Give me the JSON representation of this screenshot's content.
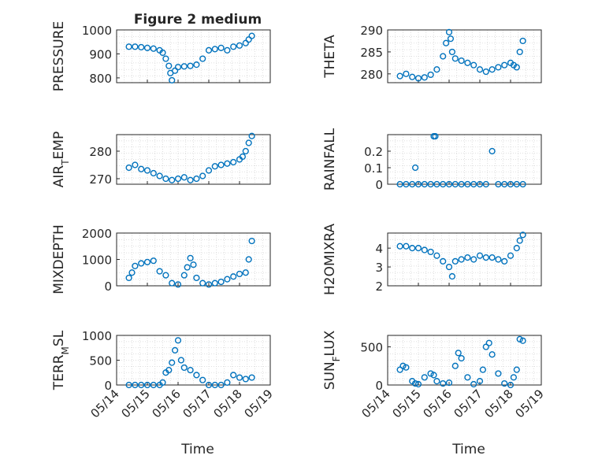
{
  "title": "Figure 2 medium",
  "marker_color": "#0072BD",
  "x_axis": {
    "label": "Time",
    "ticks": [
      {
        "value": 0,
        "label": "05/14"
      },
      {
        "value": 1,
        "label": "05/15"
      },
      {
        "value": 2,
        "label": "05/16"
      },
      {
        "value": 3,
        "label": "05/17"
      },
      {
        "value": 4,
        "label": "05/18"
      },
      {
        "value": 5,
        "label": "05/19"
      }
    ],
    "xlim": [
      0,
      5
    ]
  },
  "chart_data": [
    {
      "type": "scatter",
      "ylabel": "PRESSURE",
      "ylim": [
        780,
        1000
      ],
      "yticks": [
        800,
        900,
        1000
      ],
      "grid": true,
      "x": [
        0.4,
        0.6,
        0.8,
        1.0,
        1.2,
        1.4,
        1.5,
        1.6,
        1.7,
        1.75,
        1.8,
        1.9,
        2.0,
        2.2,
        2.4,
        2.6,
        2.8,
        3.0,
        3.2,
        3.4,
        3.6,
        3.8,
        4.0,
        4.2,
        4.3,
        4.4
      ],
      "y": [
        930,
        930,
        928,
        925,
        922,
        915,
        905,
        880,
        850,
        820,
        790,
        830,
        845,
        848,
        850,
        855,
        880,
        915,
        920,
        925,
        915,
        930,
        935,
        945,
        960,
        975
      ]
    },
    {
      "type": "scatter",
      "ylabel": "THETA",
      "ylim": [
        278,
        290
      ],
      "yticks": [
        280,
        285,
        290
      ],
      "grid": true,
      "x": [
        0.4,
        0.6,
        0.8,
        1.0,
        1.2,
        1.4,
        1.6,
        1.8,
        1.9,
        2.0,
        2.05,
        2.1,
        2.2,
        2.4,
        2.6,
        2.8,
        3.0,
        3.2,
        3.4,
        3.6,
        3.8,
        4.0,
        4.1,
        4.2,
        4.3,
        4.4
      ],
      "y": [
        279.5,
        280,
        279.3,
        279,
        279.2,
        279.8,
        281,
        284,
        287,
        289.5,
        288,
        285,
        283.5,
        283,
        282.5,
        282,
        281,
        280.5,
        281,
        281.5,
        282,
        282.5,
        282,
        281.5,
        285,
        287.5
      ]
    },
    {
      "type": "scatter",
      "ylabel": "AIR_TEMP",
      "ylim": [
        268,
        286
      ],
      "yticks": [
        270,
        280
      ],
      "grid": true,
      "x": [
        0.4,
        0.6,
        0.8,
        1.0,
        1.2,
        1.4,
        1.6,
        1.8,
        2.0,
        2.2,
        2.4,
        2.6,
        2.8,
        3.0,
        3.2,
        3.4,
        3.6,
        3.8,
        4.0,
        4.1,
        4.2,
        4.3,
        4.4
      ],
      "y": [
        274,
        275,
        273.5,
        273,
        272,
        271,
        270,
        269.5,
        270,
        270.5,
        269.5,
        270,
        271,
        273,
        274.5,
        275,
        275.5,
        276,
        277,
        278,
        280,
        283,
        285.5
      ]
    },
    {
      "type": "scatter",
      "ylabel": "RAINFALL",
      "ylim": [
        0,
        0.3
      ],
      "yticks": [
        0,
        0.1,
        0.2
      ],
      "grid": true,
      "x": [
        0.4,
        0.6,
        0.8,
        0.9,
        1.0,
        1.2,
        1.4,
        1.5,
        1.55,
        1.6,
        1.8,
        2.0,
        2.2,
        2.4,
        2.6,
        2.8,
        3.0,
        3.2,
        3.4,
        3.6,
        3.8,
        4.0,
        4.2,
        4.4
      ],
      "y": [
        0,
        0,
        0,
        0.1,
        0,
        0,
        0,
        0.29,
        0.29,
        0,
        0,
        0,
        0,
        0,
        0,
        0,
        0,
        0,
        0.2,
        0,
        0,
        0,
        0,
        0
      ]
    },
    {
      "type": "scatter",
      "ylabel": "MIXDEPTH",
      "ylim": [
        0,
        2000
      ],
      "yticks": [
        0,
        1000,
        2000
      ],
      "grid": true,
      "x": [
        0.4,
        0.5,
        0.6,
        0.8,
        1.0,
        1.2,
        1.4,
        1.6,
        1.8,
        2.0,
        2.2,
        2.3,
        2.4,
        2.5,
        2.6,
        2.8,
        3.0,
        3.2,
        3.4,
        3.6,
        3.8,
        4.0,
        4.2,
        4.3,
        4.4
      ],
      "y": [
        300,
        500,
        750,
        850,
        900,
        950,
        550,
        400,
        100,
        50,
        400,
        700,
        1050,
        800,
        300,
        100,
        50,
        100,
        150,
        250,
        350,
        450,
        500,
        1000,
        1700
      ]
    },
    {
      "type": "scatter",
      "ylabel": "H2OMIXRA",
      "ylim": [
        2,
        4.8
      ],
      "yticks": [
        2,
        3,
        4
      ],
      "grid": true,
      "x": [
        0.4,
        0.6,
        0.8,
        1.0,
        1.2,
        1.4,
        1.6,
        1.8,
        2.0,
        2.1,
        2.2,
        2.4,
        2.6,
        2.8,
        3.0,
        3.2,
        3.4,
        3.6,
        3.8,
        4.0,
        4.2,
        4.3,
        4.4
      ],
      "y": [
        4.1,
        4.1,
        4.0,
        4.0,
        3.9,
        3.8,
        3.6,
        3.3,
        3.0,
        2.5,
        3.3,
        3.4,
        3.5,
        3.4,
        3.6,
        3.5,
        3.5,
        3.4,
        3.3,
        3.6,
        4.0,
        4.4,
        4.7
      ]
    },
    {
      "type": "scatter",
      "ylabel": "TERR_MSL",
      "ylim": [
        0,
        1000
      ],
      "yticks": [
        0,
        500,
        1000
      ],
      "grid": true,
      "x": [
        0.4,
        0.6,
        0.8,
        1.0,
        1.2,
        1.4,
        1.5,
        1.6,
        1.7,
        1.8,
        1.9,
        2.0,
        2.1,
        2.2,
        2.4,
        2.6,
        2.8,
        3.0,
        3.2,
        3.4,
        3.6,
        3.8,
        4.0,
        4.2,
        4.4
      ],
      "y": [
        0,
        0,
        0,
        0,
        0,
        0,
        50,
        250,
        300,
        450,
        700,
        900,
        500,
        350,
        300,
        200,
        100,
        0,
        0,
        0,
        50,
        200,
        150,
        120,
        150
      ]
    },
    {
      "type": "scatter",
      "ylabel": "SUN_FLUX",
      "ylim": [
        0,
        650
      ],
      "yticks": [
        0,
        500
      ],
      "grid": true,
      "x": [
        0.4,
        0.5,
        0.6,
        0.8,
        0.9,
        1.0,
        1.2,
        1.4,
        1.5,
        1.6,
        1.8,
        2.0,
        2.2,
        2.3,
        2.4,
        2.6,
        2.8,
        3.0,
        3.1,
        3.2,
        3.3,
        3.4,
        3.6,
        3.8,
        4.0,
        4.1,
        4.2,
        4.3,
        4.4
      ],
      "y": [
        200,
        250,
        230,
        50,
        20,
        10,
        100,
        150,
        130,
        50,
        20,
        30,
        250,
        420,
        350,
        100,
        10,
        50,
        200,
        500,
        550,
        400,
        150,
        20,
        0,
        100,
        200,
        600,
        580
      ]
    }
  ]
}
